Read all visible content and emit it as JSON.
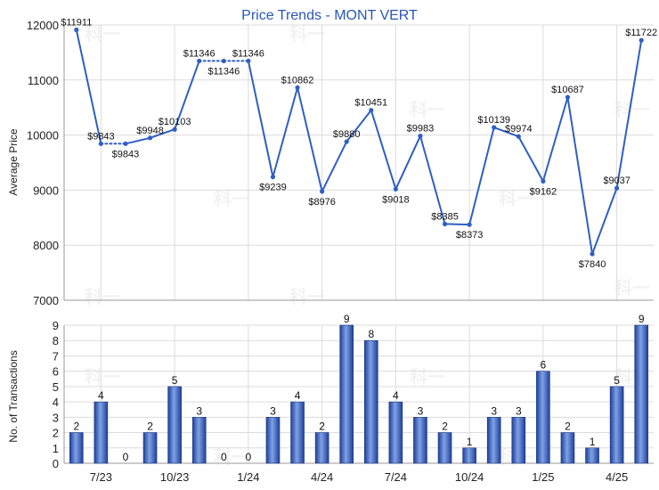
{
  "chart_data": [
    {
      "type": "line",
      "title": "Price Trends - MONT VERT",
      "ylabel": "Average Price",
      "ylim": [
        7000,
        12000
      ],
      "yticks": [
        "7000",
        "8000",
        "9000",
        "10000",
        "11000",
        "12000"
      ],
      "points": [
        {
          "label": "$11911",
          "value": 11911
        },
        {
          "label": "$9843",
          "value": 9843
        },
        {
          "label": "$9843",
          "value": 9843
        },
        {
          "label": "$9948",
          "value": 9948
        },
        {
          "label": "$10103",
          "value": 10103
        },
        {
          "label": "$11346",
          "value": 11346
        },
        {
          "label": "$11346",
          "value": 11346
        },
        {
          "label": "$11346",
          "value": 11346
        },
        {
          "label": "$9239",
          "value": 9239
        },
        {
          "label": "$10862",
          "value": 10862
        },
        {
          "label": "$8976",
          "value": 8976
        },
        {
          "label": "$9880",
          "value": 9880
        },
        {
          "label": "$10451",
          "value": 10451
        },
        {
          "label": "$9018",
          "value": 9018
        },
        {
          "label": "$9983",
          "value": 9983
        },
        {
          "label": "$8385",
          "value": 8385
        },
        {
          "label": "$8373",
          "value": 8373
        },
        {
          "label": "$10139",
          "value": 10139
        },
        {
          "label": "$9974",
          "value": 9974
        },
        {
          "label": "$9162",
          "value": 9162
        },
        {
          "label": "$10687",
          "value": 10687
        },
        {
          "label": "$7840",
          "value": 7840
        },
        {
          "label": "$9037",
          "value": 9037
        },
        {
          "label": "$11722",
          "value": 11722
        }
      ],
      "dotted_segments": [
        [
          1,
          2
        ],
        [
          5,
          6
        ],
        [
          6,
          7
        ]
      ],
      "grid": true
    },
    {
      "type": "bar",
      "ylabel": "No. of Transactions",
      "ylim": [
        0,
        9
      ],
      "yticks": [
        "0",
        "1",
        "2",
        "3",
        "4",
        "5",
        "6",
        "7",
        "8",
        "9"
      ],
      "values": [
        2,
        4,
        0,
        2,
        5,
        3,
        0,
        0,
        3,
        4,
        2,
        9,
        8,
        4,
        3,
        2,
        1,
        3,
        3,
        6,
        2,
        1,
        5,
        9
      ],
      "x_tick_labels": [
        {
          "label": "7/23",
          "at": 1.5
        },
        {
          "label": "10/23",
          "at": 4.5
        },
        {
          "label": "1/24",
          "at": 7.5
        },
        {
          "label": "4/24",
          "at": 10.5
        },
        {
          "label": "7/24",
          "at": 13.5
        },
        {
          "label": "10/24",
          "at": 16.5
        },
        {
          "label": "1/25",
          "at": 19.5
        },
        {
          "label": "4/25",
          "at": 22.5
        }
      ],
      "grid": true
    }
  ],
  "colors": {
    "line": "#2f5fc4",
    "bar_dark": "#1f3f98",
    "bar_light": "#7fa2e6",
    "grid": "#dcdcdc",
    "title": "#2a56b8"
  },
  "watermark": "科一"
}
